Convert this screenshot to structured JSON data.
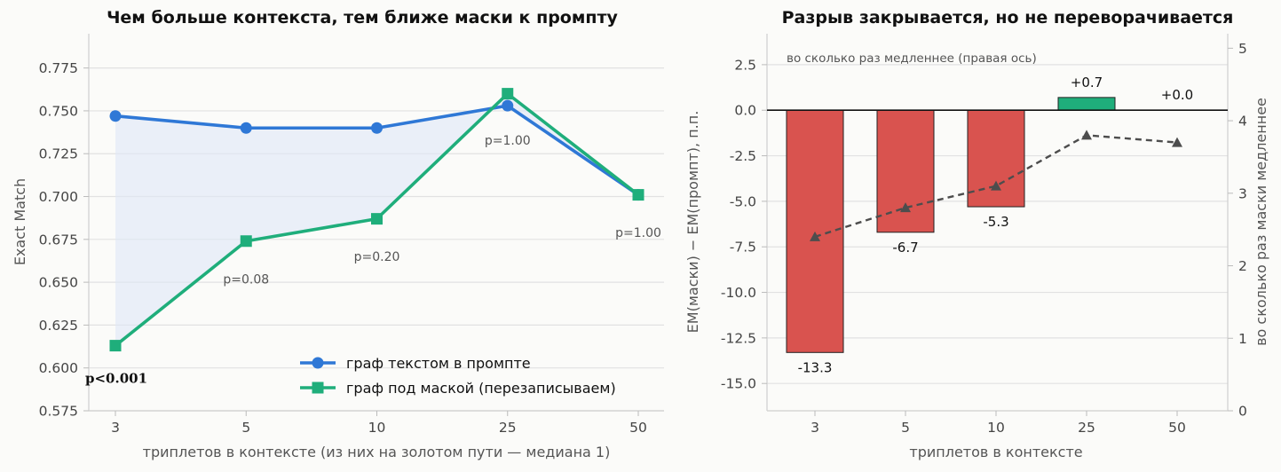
{
  "chart_data": [
    {
      "type": "line",
      "title": "Чем больше контекста, тем ближе маски к промпту",
      "xlabel": "триплетов в контексте (из них на золотом пути — медиана 1)",
      "ylabel": "Exact Match",
      "categories": [
        "3",
        "5",
        "10",
        "25",
        "50"
      ],
      "ylim": [
        0.575,
        0.795
      ],
      "yticks": [
        "0.575",
        "0.600",
        "0.625",
        "0.650",
        "0.675",
        "0.700",
        "0.725",
        "0.750",
        "0.775"
      ],
      "series": [
        {
          "name": "граф текстом в промпте",
          "values": [
            0.747,
            0.74,
            0.74,
            0.753,
            0.701
          ],
          "color": "#2f78d6",
          "marker": "circle"
        },
        {
          "name": "граф под маской (перезаписываем)",
          "values": [
            0.613,
            0.674,
            0.687,
            0.76,
            0.701
          ],
          "color": "#1fae7b",
          "marker": "square"
        }
      ],
      "fill_between": {
        "color": "#dfe8f6"
      },
      "pvalues": [
        {
          "category": "3",
          "label": "p<0.001",
          "y": 0.594,
          "bold": true
        },
        {
          "category": "5",
          "label": "p=0.08",
          "y": 0.652
        },
        {
          "category": "10",
          "label": "p=0.20",
          "y": 0.665
        },
        {
          "category": "25",
          "label": "p=1.00",
          "y": 0.733
        },
        {
          "category": "50",
          "label": "p=1.00",
          "y": 0.679
        }
      ],
      "legend": "bottom-right",
      "grid": true
    },
    {
      "type": "bar",
      "title": "Разрыв закрывается, но не переворачивается",
      "xlabel": "триплетов в контексте",
      "ylabel": "EM(маски) − EM(промпт), п.п.",
      "ylabel_right": "во сколько раз маски медленнее",
      "annotation": "во сколько раз медленнее (правая ось)",
      "categories": [
        "3",
        "5",
        "10",
        "25",
        "50"
      ],
      "values": [
        -13.3,
        -6.7,
        -5.3,
        0.7,
        0.0
      ],
      "labels": [
        "-13.3",
        "-6.7",
        "-5.3",
        "+0.7",
        "+0.0"
      ],
      "ylim": [
        -16.5,
        4.2
      ],
      "yticks": [
        "2.5",
        "0.0",
        "-2.5",
        "-5.0",
        "-7.5",
        "-10.0",
        "-12.5",
        "-15.0"
      ],
      "negative_color": "#d9534f",
      "positive_color": "#1fae7b",
      "right_axis": {
        "ylim": [
          0,
          5.2
        ],
        "yticks": [
          "0",
          "1",
          "2",
          "3",
          "4",
          "5"
        ],
        "values": [
          2.4,
          2.8,
          3.1,
          3.8,
          3.7
        ],
        "color": "#4d4d4d",
        "style": "dashed",
        "marker": "triangle"
      },
      "grid": true
    }
  ]
}
